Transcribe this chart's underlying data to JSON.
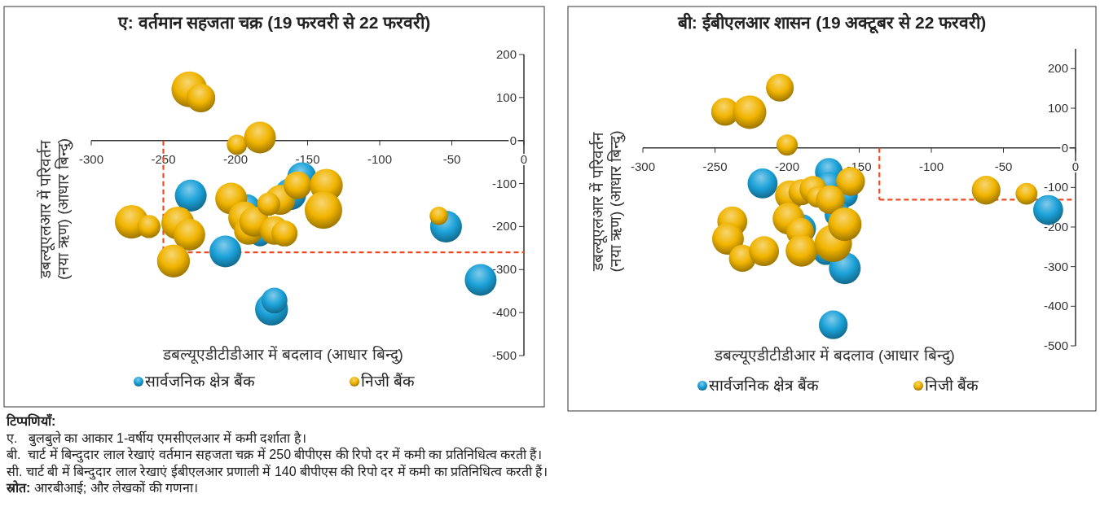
{
  "chart_data": [
    {
      "type": "bubble",
      "title": "ए: वर्तमान सहजता चक्र (19 फरवरी से 22 फरवरी)",
      "xlabel": "डबल्यूएडीटीडीआर में बदलाव (आधार बिन्दु)",
      "ylabel": "डबल्यूएलआर में परिवर्तन (नया ऋण) (आधार बिन्दु)",
      "xlim": [
        -300,
        0
      ],
      "xticks": [
        -300,
        -250,
        -200,
        -150,
        -100,
        -50,
        0
      ],
      "ylim": [
        -500,
        200
      ],
      "yticks": [
        -500,
        -400,
        -300,
        -200,
        -100,
        0,
        100,
        200
      ],
      "legend": "bottom",
      "ref_lines": [
        {
          "axis": "x",
          "value": -250,
          "color": "#f04a23",
          "line_style": "dashed"
        },
        {
          "axis": "y",
          "value": -260,
          "color": "#f04a23",
          "line_style": "dashed"
        }
      ],
      "series": [
        {
          "name": "सार्वजनिक क्षेत्र बैंक",
          "color": "#1ba1d8",
          "x": [
            -231,
            -207,
            -154,
            -162,
            -192,
            -183,
            -175,
            -173,
            -54,
            -30
          ],
          "values": [
            -128,
            -258,
            -84,
            -125,
            -155,
            -219,
            -392,
            -372,
            -200,
            -324
          ],
          "sizes": [
            0.72,
            0.72,
            0.59,
            0.72,
            0.48,
            0.38,
            0.77,
            0.48,
            0.72,
            0.72
          ]
        },
        {
          "name": "निजी बैंक",
          "color": "#f0b400",
          "x": [
            -232,
            -224,
            -199,
            -183,
            -272,
            -260,
            -240,
            -232,
            -243,
            -203,
            -194,
            -191,
            -187,
            -169,
            -177,
            -173,
            -166,
            -157,
            -137,
            -139,
            -59
          ],
          "values": [
            119,
            99,
            -10,
            7,
            -189,
            -200,
            -192,
            -219,
            -280,
            -135,
            -179,
            -209,
            -189,
            -138,
            -148,
            -209,
            -216,
            -104,
            -104,
            -162,
            -175
          ],
          "sizes": [
            0.91,
            0.59,
            0.29,
            0.72,
            0.8,
            0.38,
            0.77,
            0.72,
            0.77,
            0.72,
            0.72,
            0.59,
            0.64,
            0.64,
            0.38,
            0.59,
            0.48,
            0.55,
            0.77,
            1,
            0.24
          ]
        }
      ],
      "annotations": [
        "टिप्पणियाँ:",
        "ए.   बुलबुले का आकार 1-वर्षीय एमसीएलआर में कमी दर्शाता है।",
        "बी.  चार्ट में बिन्दुदार लाल रेखाएं वर्तमान सहजता चक्र में 250 बीपीएस की रिपो दर में कमी का प्रतिनिधित्व करती हैं।",
        "सी. चार्ट बी में बिन्दुदार लाल रेखाएं ईबीएलआर प्रणाली में 140 बीपीएस की रिपो दर में कमी का प्रतिनिधित्व करती हैं।",
        "स्रोत: आरबीआई; और लेखकों की गणना।"
      ]
    },
    {
      "type": "bubble",
      "title": "बी: ईबीएलआर शासन (19 अक्टूबर से 22 फरवरी)",
      "xlabel": "डबल्यूएडीटीडीआर में बदलाव (आधार बिन्दु)",
      "ylabel": "डबल्यूएलआर में परिवर्तन (नया ऋण) (आधार बिन्दु)",
      "xlim": [
        -300,
        0
      ],
      "xticks": [
        -300,
        -250,
        -200,
        -150,
        -100,
        -50,
        0
      ],
      "ylim": [
        -500,
        250
      ],
      "yticks": [
        -500,
        -400,
        -300,
        -200,
        -100,
        0,
        100,
        200
      ],
      "legend": "bottom",
      "ref_lines": [
        {
          "axis": "x",
          "value": -136,
          "color": "#f04a23",
          "line_style": "dashed"
        },
        {
          "axis": "y",
          "value": -131,
          "color": "#f04a23",
          "line_style": "dashed"
        }
      ],
      "series": [
        {
          "name": "सार्वजनिक क्षेत्र बैंक",
          "color": "#1ba1d8",
          "x": [
            -217,
            -171,
            -171,
            -159,
            -190,
            -165,
            -173,
            -160,
            -168,
            -19
          ],
          "values": [
            -90,
            -61,
            -94,
            -120,
            -204,
            -168,
            -263,
            -304,
            -447,
            -157
          ],
          "sizes": [
            0.64,
            0.55,
            0.48,
            0.38,
            0.59,
            0.48,
            0.48,
            0.72,
            0.59,
            0.64
          ]
        },
        {
          "name": "निजी बैंक",
          "color": "#f0b400",
          "x": [
            -205,
            -243,
            -226,
            -200,
            -156,
            -198,
            -190,
            -182,
            -179,
            -170,
            -199,
            -191,
            -190,
            -238,
            -241,
            -231,
            -216,
            -168,
            -160,
            -62,
            -34
          ],
          "values": [
            152,
            91,
            90,
            7,
            -85,
            -120,
            -112,
            -105,
            -124,
            -131,
            -179,
            -212,
            -260,
            -186,
            -230,
            -279,
            -261,
            -241,
            -193,
            -107,
            -116
          ],
          "sizes": [
            0.55,
            0.55,
            0.8,
            0.32,
            0.59,
            0.64,
            0.48,
            0.52,
            0.32,
            0.59,
            0.72,
            0.55,
            0.72,
            0.64,
            0.72,
            0.52,
            0.64,
            1,
            0.8,
            0.59,
            0.34
          ]
        }
      ]
    }
  ]
}
